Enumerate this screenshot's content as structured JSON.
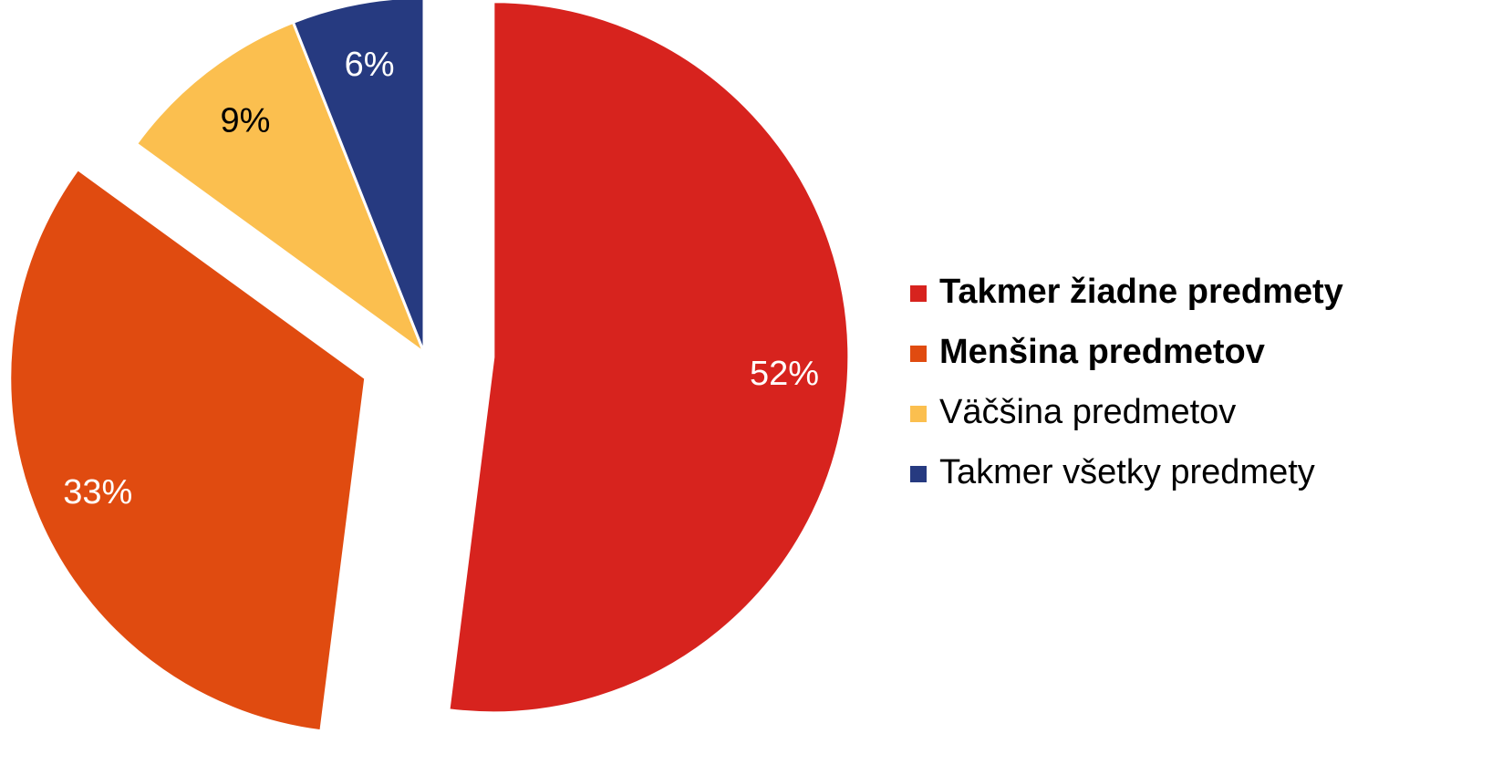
{
  "chart_data": {
    "type": "pie",
    "categories": [
      "Takmer žiadne predmety",
      "Menšina predmetov",
      "Väčšina predmetov",
      "Takmer všetky predmety"
    ],
    "values": [
      52,
      33,
      9,
      6
    ],
    "value_labels": [
      "52%",
      "33%",
      "9%",
      "6%"
    ],
    "colors": [
      "#d7231e",
      "#e04b10",
      "#fbbf4f",
      "#263a80"
    ],
    "legend": "right"
  }
}
